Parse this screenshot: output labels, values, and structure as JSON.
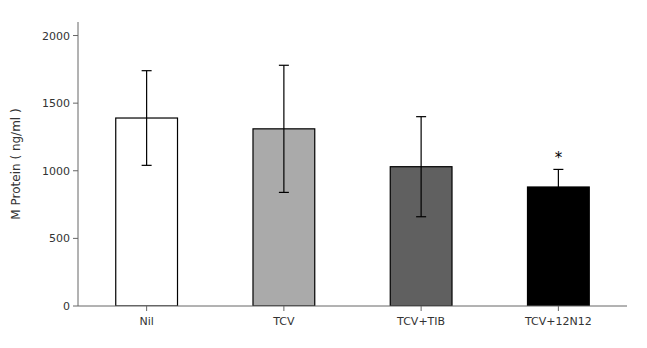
{
  "chart_data": {
    "type": "bar",
    "categories": [
      "Nil",
      "TCV",
      "TCV+TIB",
      "TCV+12N12"
    ],
    "values": [
      1390,
      1310,
      1030,
      880
    ],
    "errors": [
      350,
      470,
      370,
      130
    ],
    "colors": [
      "#ffffff",
      "#aaaaaa",
      "#606060",
      "#000000"
    ],
    "ylabel": "M Protein ( ng/ml )",
    "ylim": [
      0,
      2100
    ],
    "yticks": [
      0,
      500,
      1000,
      1500,
      2000
    ],
    "grid": false,
    "annotations": [
      {
        "text": "*",
        "category": "TCV+12N12"
      }
    ]
  }
}
